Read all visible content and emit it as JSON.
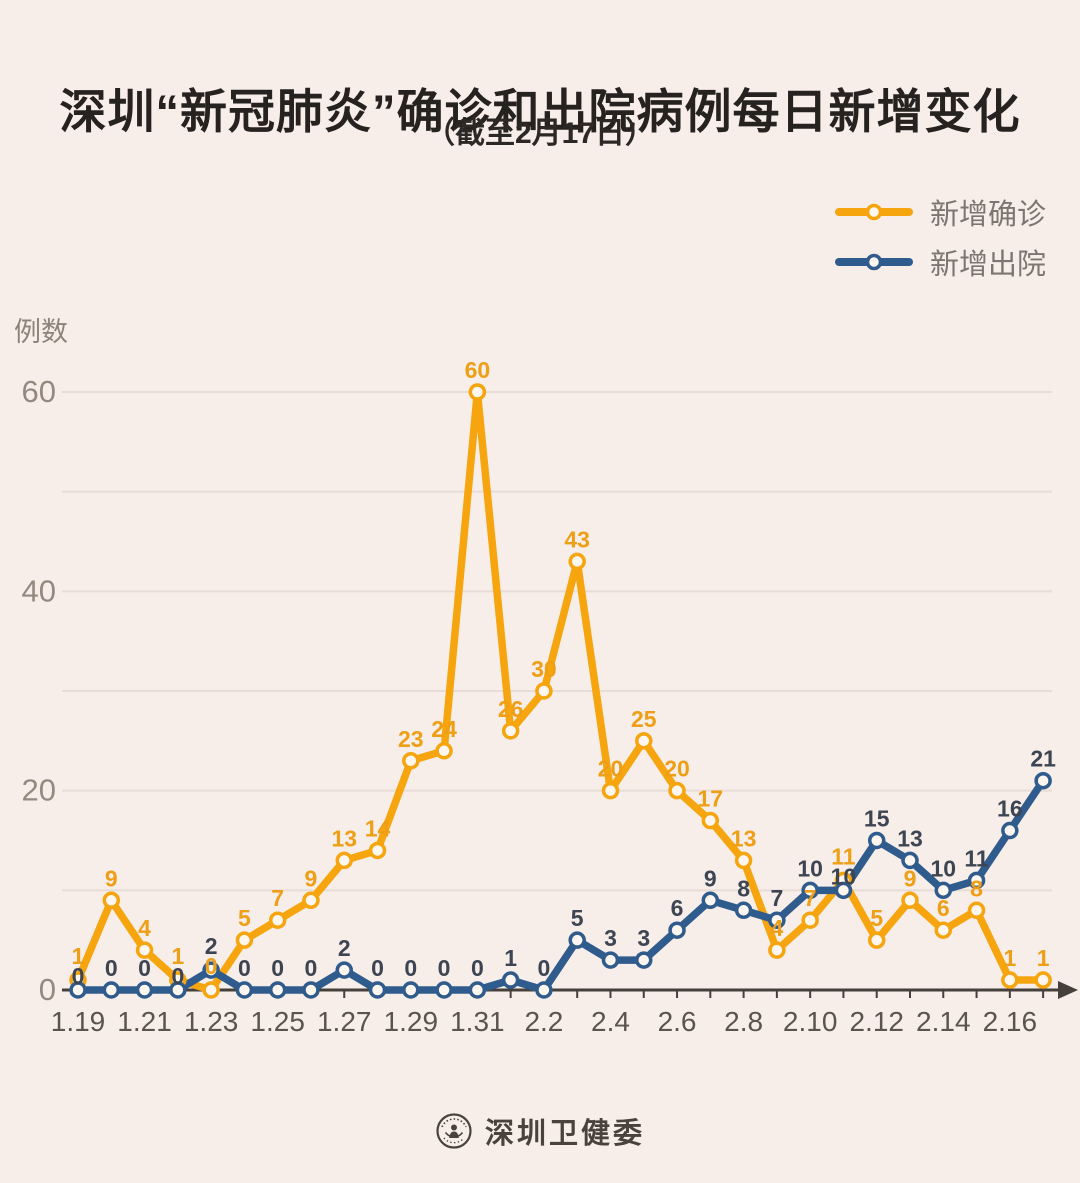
{
  "header": {
    "title": "深圳“新冠肺炎”确诊和出院病例每日新增变化",
    "subtitle": "（截至2月17日）"
  },
  "legend": [
    {
      "label": "新增确诊",
      "color": "#f6a50f"
    },
    {
      "label": "新增出院",
      "color": "#2f5b8d"
    }
  ],
  "chart_data": {
    "type": "line",
    "title": "深圳“新冠肺炎”确诊和出院病例每日新增变化",
    "subtitle": "（截至2月17日）",
    "xlabel": "",
    "ylabel": "例数",
    "categories": [
      "1.19",
      "1.20",
      "1.21",
      "1.22",
      "1.23",
      "1.24",
      "1.25",
      "1.26",
      "1.27",
      "1.28",
      "1.29",
      "1.30",
      "1.31",
      "2.1",
      "2.2",
      "2.3",
      "2.4",
      "2.5",
      "2.6",
      "2.7",
      "2.8",
      "2.9",
      "2.10",
      "2.11",
      "2.12",
      "2.13",
      "2.14",
      "2.15",
      "2.16",
      "2.17"
    ],
    "x_tick_every": 2,
    "series": [
      {
        "name": "新增确诊",
        "color": "#f6a50f",
        "label_color": "#ef9f16",
        "values": [
          1,
          9,
          4,
          1,
          0,
          5,
          7,
          9,
          13,
          14,
          23,
          24,
          60,
          26,
          30,
          43,
          20,
          25,
          20,
          17,
          13,
          4,
          7,
          11,
          5,
          9,
          6,
          8,
          1,
          1
        ]
      },
      {
        "name": "新增出院",
        "color": "#2f5b8d",
        "label_color": "#3d4553",
        "values": [
          0,
          0,
          0,
          0,
          2,
          0,
          0,
          0,
          2,
          0,
          0,
          0,
          0,
          1,
          0,
          5,
          3,
          3,
          6,
          9,
          8,
          7,
          10,
          10,
          15,
          13,
          10,
          11,
          16,
          21
        ]
      }
    ],
    "y_ticks": [
      0,
      20,
      40,
      60
    ],
    "ylim": [
      0,
      63
    ],
    "grid": true,
    "grid_interval": 10,
    "legend_position": "top-right",
    "colors": {
      "background": "#f7eeea",
      "grid_line": "#e7dcd6",
      "axis": "#45403b",
      "y_tick_label": "#95897f",
      "x_tick_label": "#5b544d"
    }
  },
  "footer": {
    "brand": "深圳卫健委"
  }
}
